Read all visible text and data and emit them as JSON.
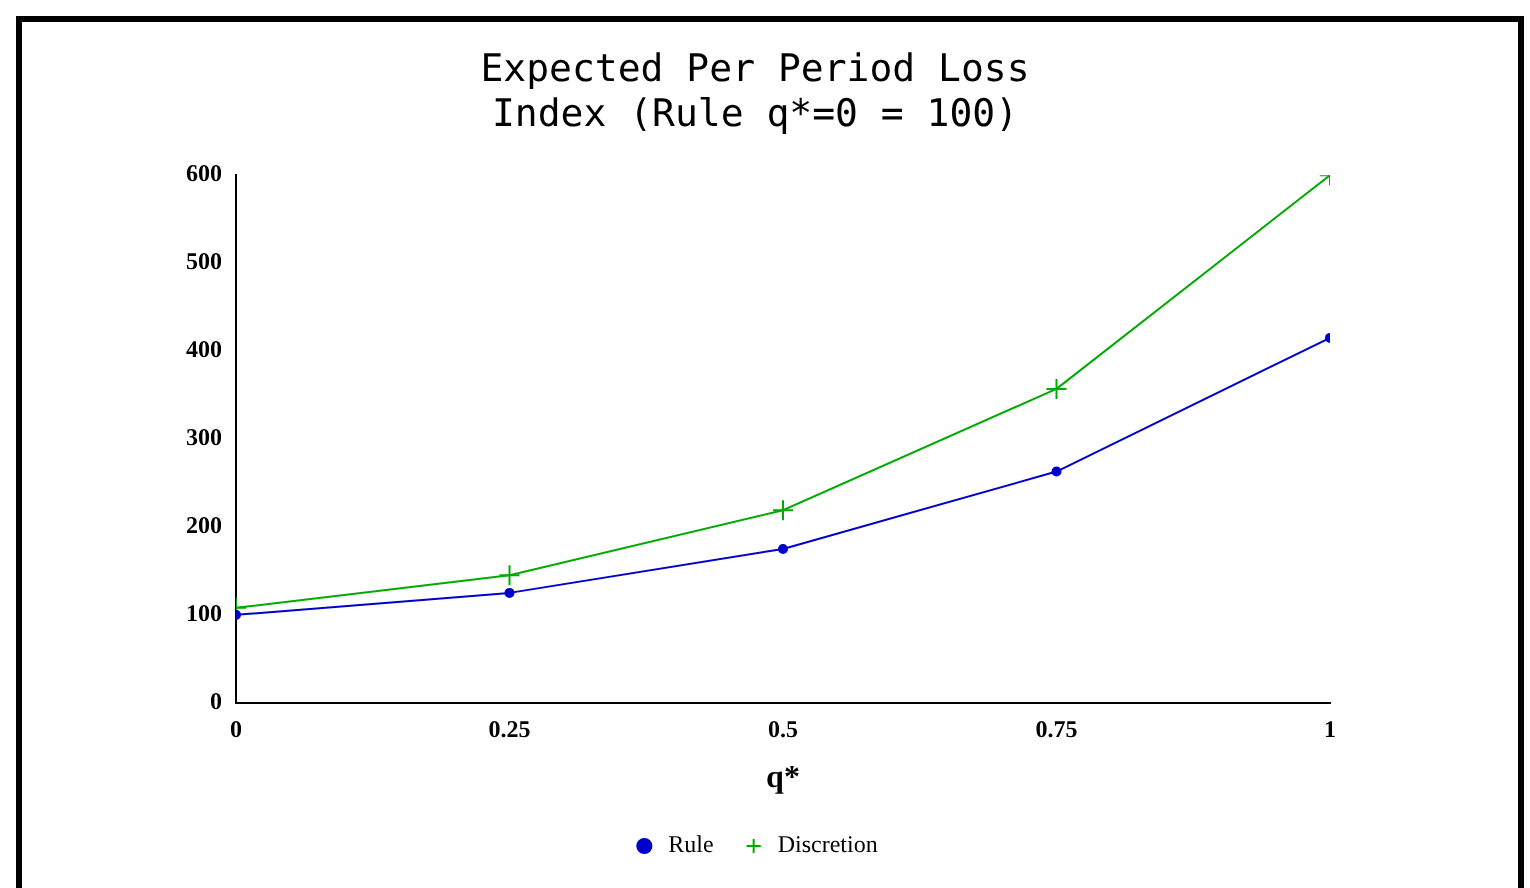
{
  "chart_data": {
    "type": "line",
    "title": "Expected Per Period Loss\nIndex (Rule q*=0 = 100)",
    "xlabel": "q*",
    "x": [
      0,
      0.25,
      0.5,
      0.75,
      1
    ],
    "series": [
      {
        "name": "Rule",
        "color": "#0000cc",
        "marker": "circle",
        "values": [
          100,
          125,
          175,
          263,
          415
        ]
      },
      {
        "name": "Discretion",
        "color": "#00aa00",
        "marker": "cross",
        "values": [
          108,
          145,
          219,
          357,
          600
        ]
      }
    ],
    "xlim": [
      0,
      1
    ],
    "xticks": [
      0,
      0.25,
      0.5,
      0.75,
      1
    ],
    "ylim": [
      0,
      600
    ],
    "yticks": [
      0,
      100,
      200,
      300,
      400,
      500,
      600
    ],
    "grid": false,
    "legend": "bottom",
    "line_style": "solid"
  }
}
